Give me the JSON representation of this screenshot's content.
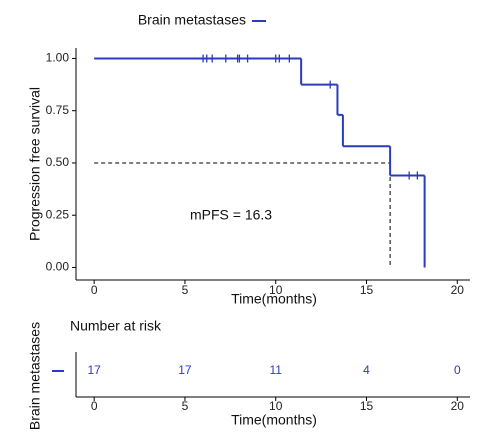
{
  "chart_data": [
    {
      "type": "km",
      "legend": "top",
      "xlabel": "Time(months)",
      "ylabel": "Progression free survival",
      "xlim": [
        -1,
        20.7
      ],
      "ylim": [
        -0.06,
        1.05
      ],
      "xticks": [
        0,
        5,
        10,
        15,
        20
      ],
      "yticks": [
        {
          "value": 0,
          "label": "0.00"
        },
        {
          "value": 0.25,
          "label": "0.25"
        },
        {
          "value": 0.5,
          "label": "0.50"
        },
        {
          "value": 0.75,
          "label": "0.75"
        },
        {
          "value": 1,
          "label": "1.00"
        }
      ],
      "series": [
        {
          "name": "Brain metastases",
          "color": "#2b3bbd",
          "x": [
            0,
            11.4,
            13.4,
            13.7,
            16.3,
            18.2
          ],
          "values": [
            1,
            0.875,
            0.73,
            0.58,
            0.44,
            0
          ],
          "censor_x": [
            6.0,
            6.2,
            6.5,
            7.25,
            7.9,
            8.0,
            8.45,
            10.0,
            10.2,
            10.75,
            13.0,
            17.35,
            17.8
          ],
          "censor_values": [
            1,
            1,
            1,
            1,
            1,
            1,
            1,
            1,
            1,
            1,
            0.875,
            0.44,
            0.44
          ]
        }
      ],
      "median": 16.3,
      "median_survival": 0.5,
      "annotation": "mPFS = 16.3"
    },
    {
      "type": "risk_table",
      "title": "Number at risk",
      "xlabel": "Time(months)",
      "ylabel": "Brain metastases",
      "color": "#2b3bbd",
      "xlim": [
        -1,
        20.7
      ],
      "xticks": [
        0,
        5,
        10,
        15,
        20
      ],
      "x": [
        0,
        5,
        10,
        15,
        20
      ],
      "values": [
        17,
        17,
        11,
        4,
        0
      ]
    }
  ]
}
